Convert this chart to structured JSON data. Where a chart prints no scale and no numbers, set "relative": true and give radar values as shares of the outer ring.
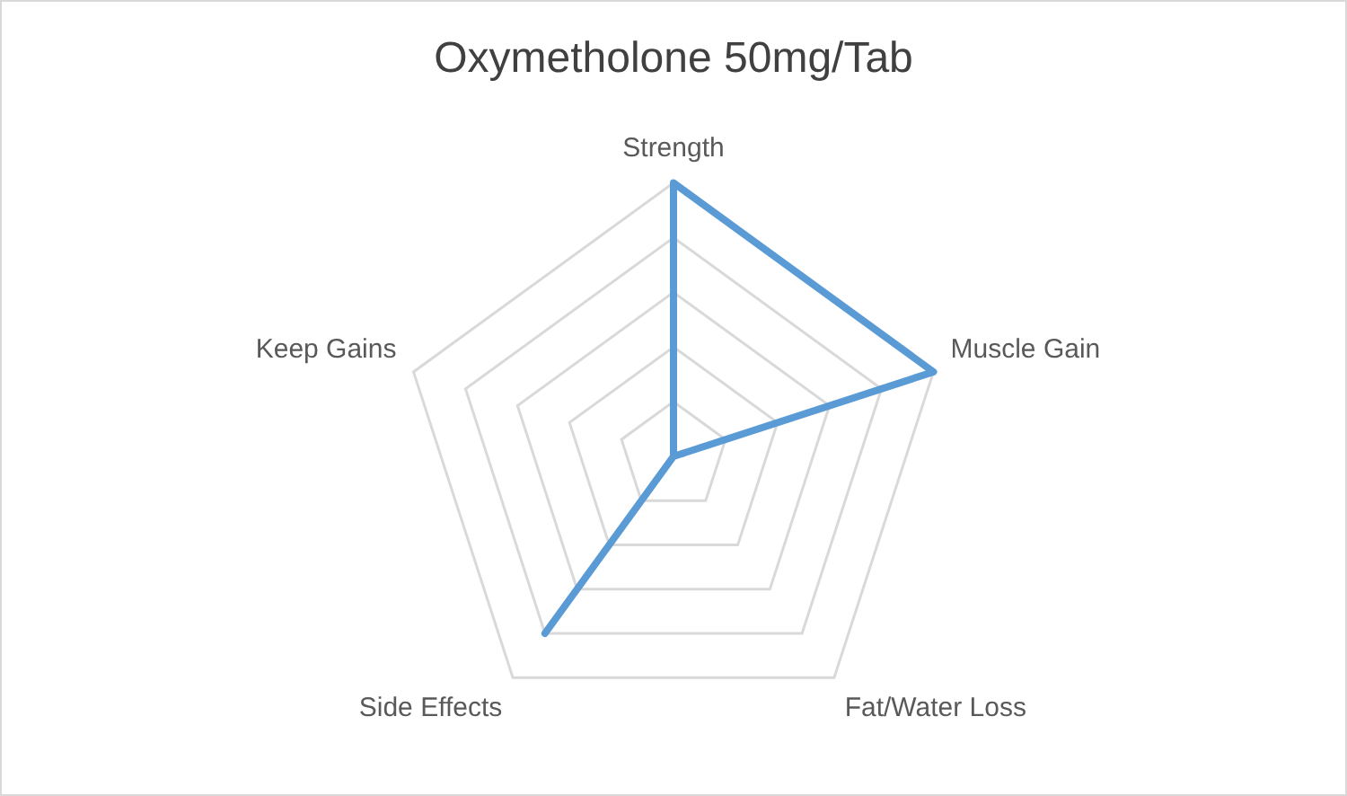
{
  "chart_data": {
    "type": "radar",
    "title": "Oxymetholone 50mg/Tab",
    "categories": [
      "Strength",
      "Muscle Gain",
      "Fat/Water Loss",
      "Side Effects",
      "Keep Gains"
    ],
    "relative": true,
    "series": [
      {
        "color": "#5b9bd5",
        "values": [
          1,
          1,
          0,
          0.8,
          0
        ]
      }
    ],
    "grid": true,
    "legend": false,
    "marker": "none"
  }
}
